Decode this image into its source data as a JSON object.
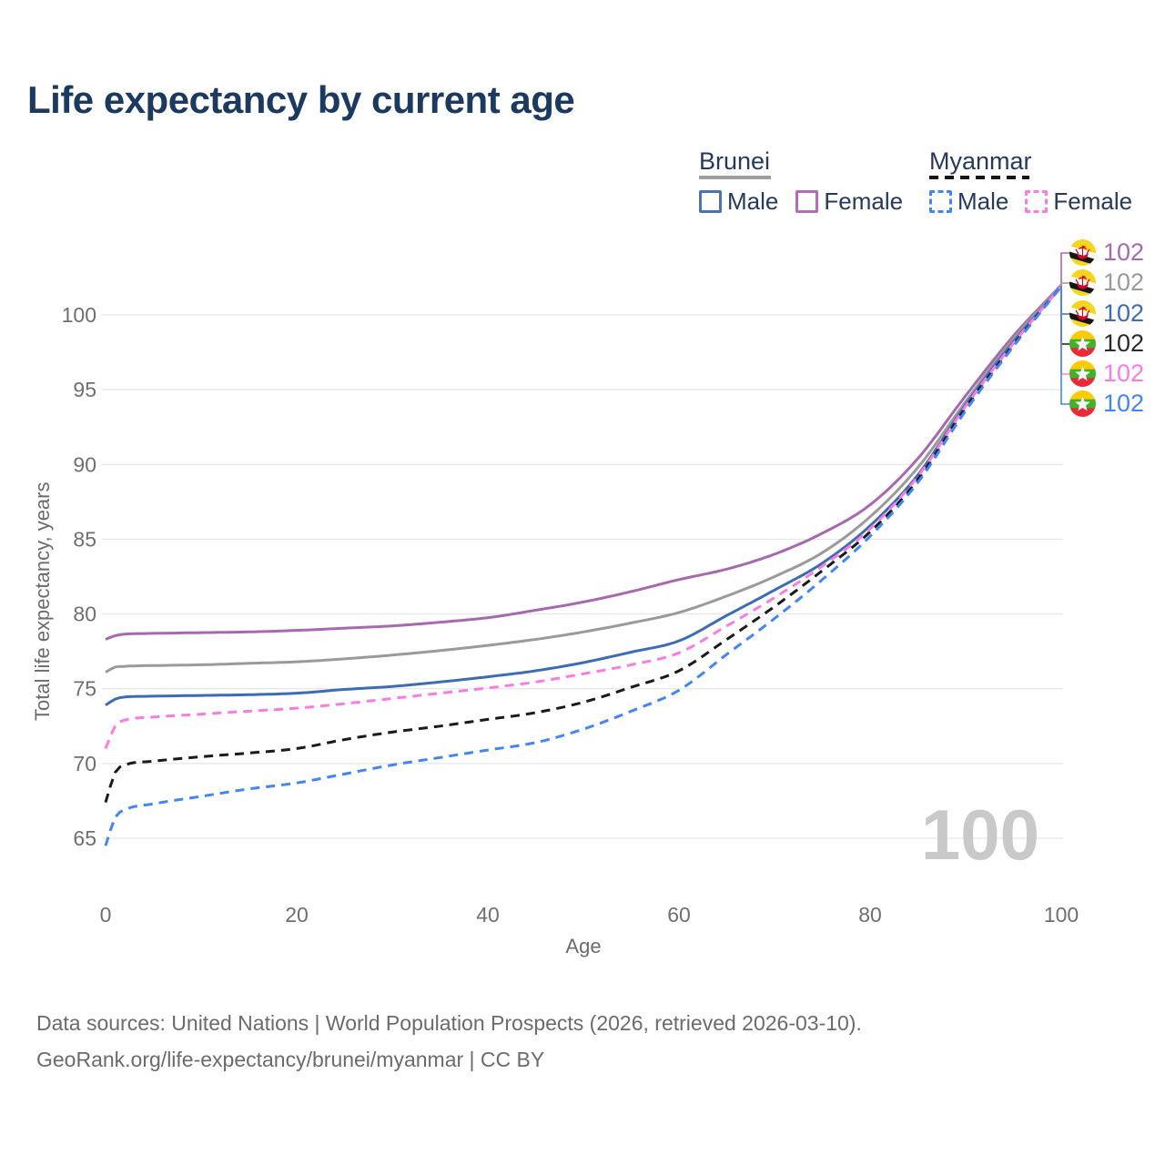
{
  "header": {
    "title": "Life expectancy by current age"
  },
  "legend": {
    "groups": [
      {
        "name": "Brunei",
        "line_style": "solid",
        "underline_color": "#9e9e9e",
        "items": [
          {
            "label": "Male",
            "color": "#4a73b5"
          },
          {
            "label": "Female",
            "color": "#b26db4"
          }
        ]
      },
      {
        "name": "Myanmar",
        "line_style": "dashed",
        "underline_color": "#151515",
        "items": [
          {
            "label": "Male",
            "color": "#4286f5"
          },
          {
            "label": "Female",
            "color": "#fd7ce1"
          }
        ]
      }
    ]
  },
  "chart_data": {
    "type": "line",
    "title": "Life expectancy by current age",
    "xlabel": "Age",
    "ylabel": "Total life expectancy, years",
    "xlim": [
      0,
      100
    ],
    "ylim": [
      63,
      103
    ],
    "xticks": [
      0,
      20,
      40,
      60,
      80,
      100
    ],
    "yticks": [
      65,
      70,
      75,
      80,
      85,
      90,
      95,
      100
    ],
    "grid": "horizontal",
    "legend_position": "top-right",
    "ages": [
      0,
      1,
      2,
      5,
      10,
      15,
      20,
      25,
      30,
      35,
      40,
      45,
      50,
      55,
      60,
      65,
      70,
      75,
      80,
      85,
      90,
      95,
      100
    ],
    "series": [
      {
        "name": "Brunei — Female",
        "country": "Brunei",
        "sex": "Female",
        "color": "#a868b0",
        "dashed": false,
        "values": [
          78.3,
          78.55,
          78.65,
          78.7,
          78.75,
          78.8,
          78.9,
          79.05,
          79.2,
          79.45,
          79.75,
          80.25,
          80.8,
          81.5,
          82.3,
          83.0,
          84.0,
          85.4,
          87.3,
          90.4,
          94.6,
          98.6,
          102.0
        ]
      },
      {
        "name": "Brunei — Both sexes",
        "country": "Brunei",
        "sex": "Both sexes",
        "color": "#9a9a9a",
        "dashed": false,
        "values": [
          76.1,
          76.45,
          76.5,
          76.55,
          76.6,
          76.7,
          76.8,
          77.0,
          77.25,
          77.55,
          77.9,
          78.3,
          78.8,
          79.4,
          80.1,
          81.2,
          82.5,
          84.1,
          86.5,
          89.8,
          94.2,
          98.4,
          101.95
        ]
      },
      {
        "name": "Brunei — Male",
        "country": "Brunei",
        "sex": "Male",
        "color": "#3d6cb4",
        "dashed": false,
        "values": [
          73.9,
          74.3,
          74.45,
          74.5,
          74.55,
          74.6,
          74.7,
          74.95,
          75.15,
          75.45,
          75.8,
          76.2,
          76.75,
          77.45,
          78.2,
          79.9,
          81.6,
          83.4,
          85.9,
          89.3,
          94.0,
          98.2,
          101.9
        ]
      },
      {
        "name": "Myanmar — Both sexes",
        "country": "Myanmar",
        "sex": "Both sexes",
        "color": "#1a1a1a",
        "dashed": true,
        "values": [
          67.4,
          69.4,
          69.9,
          70.15,
          70.45,
          70.7,
          71.0,
          71.6,
          72.1,
          72.5,
          72.95,
          73.4,
          74.1,
          75.1,
          76.2,
          78.3,
          80.5,
          82.9,
          85.5,
          89.0,
          93.8,
          98.0,
          101.9
        ]
      },
      {
        "name": "Myanmar — Female",
        "country": "Myanmar",
        "sex": "Female",
        "color": "#fb7ce1",
        "dashed": true,
        "values": [
          71.0,
          72.5,
          72.9,
          73.1,
          73.3,
          73.5,
          73.7,
          74.0,
          74.35,
          74.7,
          75.05,
          75.45,
          76.0,
          76.6,
          77.4,
          79.2,
          81.1,
          83.2,
          85.7,
          89.2,
          93.9,
          98.1,
          101.9
        ]
      },
      {
        "name": "Myanmar — Male",
        "country": "Myanmar",
        "sex": "Male",
        "color": "#4285f4",
        "dashed": true,
        "values": [
          64.5,
          66.4,
          66.9,
          67.3,
          67.8,
          68.3,
          68.7,
          69.3,
          69.9,
          70.4,
          70.9,
          71.4,
          72.3,
          73.5,
          74.9,
          77.3,
          79.7,
          82.3,
          85.2,
          88.8,
          93.6,
          97.9,
          101.9
        ]
      }
    ]
  },
  "end_rows": [
    {
      "flag": "brunei",
      "value": "102",
      "color": "#a868b0"
    },
    {
      "flag": "brunei",
      "value": "102",
      "color": "#9a9a9a"
    },
    {
      "flag": "brunei",
      "value": "102",
      "color": "#3d6cb4"
    },
    {
      "flag": "myanmar",
      "value": "102",
      "color": "#2b2b2b"
    },
    {
      "flag": "myanmar",
      "value": "102",
      "color": "#fb7ce1"
    },
    {
      "flag": "myanmar",
      "value": "102",
      "color": "#4285f4"
    }
  ],
  "watermark": "100",
  "colors": {
    "title": "#1c3a60",
    "grid": "#e6e6e6",
    "axis_text": "#6f6f6f",
    "watermark": "#c9c9c9"
  },
  "footer": {
    "line1": "Data sources: United Nations | World Population Prospects (2026, retrieved 2026-03-10).",
    "line2": "GeoRank.org/life-expectancy/brunei/myanmar | CC BY"
  }
}
